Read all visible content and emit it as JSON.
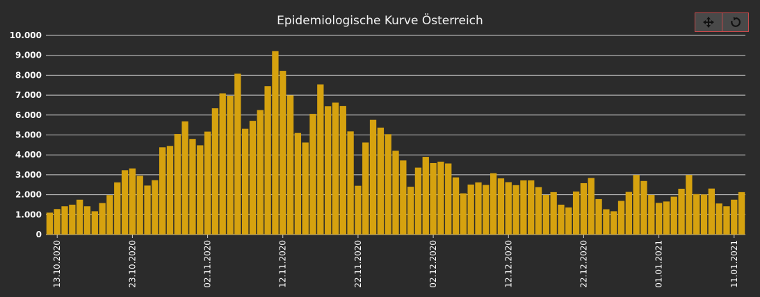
{
  "toolbar": {
    "pan_icon": "move-arrows-icon",
    "reset_icon": "rotate-reset-icon"
  },
  "colors": {
    "background": "#2b2b2b",
    "bar": "#d6a20f",
    "grid": "#cfcfcf",
    "text": "#ffffff"
  },
  "chart_data": {
    "type": "bar",
    "title": "Epidemiologische Kurve Österreich",
    "xlabel": "",
    "ylabel": "",
    "ylim": [
      0,
      10000
    ],
    "yticks": [
      0,
      1000,
      2000,
      3000,
      4000,
      5000,
      6000,
      7000,
      8000,
      9000,
      10000
    ],
    "ytick_labels": [
      "0",
      "1.000",
      "2.000",
      "3.000",
      "4.000",
      "5.000",
      "6.000",
      "7.000",
      "8.000",
      "9.000",
      "10.000"
    ],
    "xtick_labels": [
      "13.10.2020",
      "23.10.2020",
      "02.11.2020",
      "12.11.2020",
      "22.11.2020",
      "02.12.2020",
      "12.12.2020",
      "22.12.2020",
      "01.01.2021",
      "11.01.2021"
    ],
    "grid": "horizontal",
    "legend": "none",
    "categories": [
      "12.10.2020",
      "13.10.2020",
      "14.10.2020",
      "15.10.2020",
      "16.10.2020",
      "17.10.2020",
      "18.10.2020",
      "19.10.2020",
      "20.10.2020",
      "21.10.2020",
      "22.10.2020",
      "23.10.2020",
      "24.10.2020",
      "25.10.2020",
      "26.10.2020",
      "27.10.2020",
      "28.10.2020",
      "29.10.2020",
      "30.10.2020",
      "31.10.2020",
      "01.11.2020",
      "02.11.2020",
      "03.11.2020",
      "04.11.2020",
      "05.11.2020",
      "06.11.2020",
      "07.11.2020",
      "08.11.2020",
      "09.11.2020",
      "10.11.2020",
      "11.11.2020",
      "12.11.2020",
      "13.11.2020",
      "14.11.2020",
      "15.11.2020",
      "16.11.2020",
      "17.11.2020",
      "18.11.2020",
      "19.11.2020",
      "20.11.2020",
      "21.11.2020",
      "22.11.2020",
      "23.11.2020",
      "24.11.2020",
      "25.11.2020",
      "26.11.2020",
      "27.11.2020",
      "28.11.2020",
      "29.11.2020",
      "30.11.2020",
      "01.12.2020",
      "02.12.2020",
      "03.12.2020",
      "04.12.2020",
      "05.12.2020",
      "06.12.2020",
      "07.12.2020",
      "08.12.2020",
      "09.12.2020",
      "10.12.2020",
      "11.12.2020",
      "12.12.2020",
      "13.12.2020",
      "14.12.2020",
      "15.12.2020",
      "16.12.2020",
      "17.12.2020",
      "18.12.2020",
      "19.12.2020",
      "20.12.2020",
      "21.12.2020",
      "22.12.2020",
      "23.12.2020",
      "24.12.2020",
      "25.12.2020",
      "26.12.2020",
      "27.12.2020",
      "28.12.2020",
      "29.12.2020",
      "30.12.2020",
      "31.12.2020",
      "01.01.2021",
      "02.01.2021",
      "03.01.2021",
      "04.01.2021",
      "05.01.2021",
      "06.01.2021",
      "07.01.2021",
      "08.01.2021",
      "09.01.2021",
      "10.01.2021",
      "11.01.2021",
      "12.01.2021"
    ],
    "values": [
      1100,
      1280,
      1420,
      1500,
      1750,
      1420,
      1170,
      1580,
      1980,
      2620,
      3230,
      3320,
      2950,
      2460,
      2730,
      4380,
      4450,
      5050,
      5680,
      4800,
      4480,
      5170,
      6340,
      7090,
      6970,
      8080,
      5310,
      5710,
      6250,
      7450,
      9210,
      8220,
      6990,
      5100,
      4620,
      6060,
      7540,
      6440,
      6630,
      6450,
      5180,
      2450,
      4620,
      5760,
      5370,
      5040,
      4210,
      3720,
      2400,
      3360,
      3900,
      3590,
      3660,
      3570,
      2870,
      2070,
      2510,
      2620,
      2490,
      3080,
      2820,
      2630,
      2480,
      2720,
      2720,
      2380,
      1990,
      2130,
      1500,
      1360,
      2160,
      2580,
      2840,
      1780,
      1270,
      1170,
      1690,
      2140,
      2990,
      2690,
      1990,
      1590,
      1660,
      1900,
      2300,
      2990,
      2030,
      2010,
      2310,
      1560,
      1420,
      1750,
      2130
    ]
  }
}
